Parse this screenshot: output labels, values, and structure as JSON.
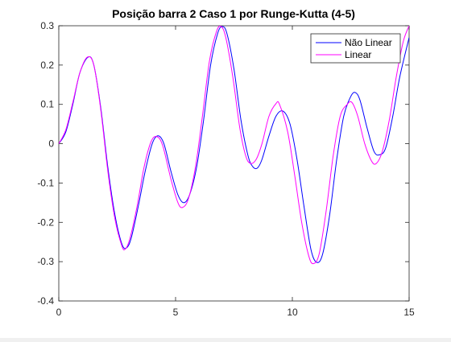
{
  "chart_data": {
    "type": "line",
    "title": "Posição barra 2 Caso 1 por Runge-Kutta (4-5)",
    "xlabel": "",
    "ylabel": "",
    "xlim": [
      0,
      15
    ],
    "ylim": [
      -0.4,
      0.3
    ],
    "xticks": [
      0,
      5,
      10,
      15
    ],
    "xtick_labels": [
      "0",
      "5",
      "10",
      "15"
    ],
    "yticks": [
      -0.4,
      -0.3,
      -0.2,
      -0.1,
      0,
      0.1,
      0.2,
      0.3
    ],
    "ytick_labels": [
      "-0.4",
      "-0.3",
      "-0.2",
      "-0.1",
      "0",
      "0.1",
      "0.2",
      "0.3"
    ],
    "grid": false,
    "legend_position": "top-right",
    "series": [
      {
        "name": "Não Linear",
        "color": "#0000ff",
        "points": [
          [
            0,
            0
          ],
          [
            0.3,
            0.03
          ],
          [
            0.6,
            0.1
          ],
          [
            0.9,
            0.18
          ],
          [
            1.25,
            0.22
          ],
          [
            1.5,
            0.2
          ],
          [
            1.8,
            0.09
          ],
          [
            2.1,
            -0.06
          ],
          [
            2.4,
            -0.18
          ],
          [
            2.7,
            -0.255
          ],
          [
            2.9,
            -0.265
          ],
          [
            3.1,
            -0.24
          ],
          [
            3.4,
            -0.16
          ],
          [
            3.7,
            -0.07
          ],
          [
            4.0,
            0.0
          ],
          [
            4.25,
            0.02
          ],
          [
            4.5,
            0.0
          ],
          [
            4.8,
            -0.07
          ],
          [
            5.1,
            -0.13
          ],
          [
            5.35,
            -0.15
          ],
          [
            5.6,
            -0.13
          ],
          [
            5.9,
            -0.06
          ],
          [
            6.2,
            0.06
          ],
          [
            6.5,
            0.2
          ],
          [
            6.8,
            0.28
          ],
          [
            7.0,
            0.298
          ],
          [
            7.2,
            0.28
          ],
          [
            7.5,
            0.19
          ],
          [
            7.8,
            0.06
          ],
          [
            8.1,
            -0.03
          ],
          [
            8.3,
            -0.058
          ],
          [
            8.5,
            -0.062
          ],
          [
            8.7,
            -0.04
          ],
          [
            9.0,
            0.02
          ],
          [
            9.3,
            0.07
          ],
          [
            9.6,
            0.083
          ],
          [
            9.9,
            0.05
          ],
          [
            10.2,
            -0.04
          ],
          [
            10.5,
            -0.16
          ],
          [
            10.8,
            -0.27
          ],
          [
            11.05,
            -0.302
          ],
          [
            11.3,
            -0.28
          ],
          [
            11.6,
            -0.18
          ],
          [
            11.9,
            -0.04
          ],
          [
            12.2,
            0.07
          ],
          [
            12.5,
            0.12
          ],
          [
            12.7,
            0.13
          ],
          [
            12.9,
            0.11
          ],
          [
            13.2,
            0.04
          ],
          [
            13.5,
            -0.02
          ],
          [
            13.75,
            -0.028
          ],
          [
            14.0,
            -0.01
          ],
          [
            14.3,
            0.07
          ],
          [
            14.6,
            0.17
          ],
          [
            15.0,
            0.27
          ]
        ]
      },
      {
        "name": "Linear",
        "color": "#ff00ff",
        "points": [
          [
            0,
            0
          ],
          [
            0.3,
            0.035
          ],
          [
            0.6,
            0.105
          ],
          [
            0.9,
            0.18
          ],
          [
            1.22,
            0.22
          ],
          [
            1.5,
            0.2
          ],
          [
            1.8,
            0.085
          ],
          [
            2.1,
            -0.07
          ],
          [
            2.4,
            -0.19
          ],
          [
            2.7,
            -0.26
          ],
          [
            2.85,
            -0.268
          ],
          [
            3.05,
            -0.24
          ],
          [
            3.35,
            -0.16
          ],
          [
            3.65,
            -0.06
          ],
          [
            3.95,
            0.005
          ],
          [
            4.2,
            0.018
          ],
          [
            4.45,
            -0.005
          ],
          [
            4.8,
            -0.09
          ],
          [
            5.1,
            -0.15
          ],
          [
            5.3,
            -0.162
          ],
          [
            5.55,
            -0.14
          ],
          [
            5.85,
            -0.06
          ],
          [
            6.15,
            0.07
          ],
          [
            6.45,
            0.21
          ],
          [
            6.75,
            0.285
          ],
          [
            6.95,
            0.298
          ],
          [
            7.15,
            0.27
          ],
          [
            7.45,
            0.17
          ],
          [
            7.75,
            0.04
          ],
          [
            8.0,
            -0.03
          ],
          [
            8.2,
            -0.05
          ],
          [
            8.45,
            -0.04
          ],
          [
            8.7,
            0.0
          ],
          [
            9.0,
            0.07
          ],
          [
            9.3,
            0.102
          ],
          [
            9.45,
            0.1
          ],
          [
            9.8,
            0.03
          ],
          [
            10.1,
            -0.08
          ],
          [
            10.4,
            -0.2
          ],
          [
            10.7,
            -0.285
          ],
          [
            10.9,
            -0.305
          ],
          [
            11.15,
            -0.28
          ],
          [
            11.45,
            -0.17
          ],
          [
            11.75,
            -0.03
          ],
          [
            12.05,
            0.07
          ],
          [
            12.35,
            0.1
          ],
          [
            12.55,
            0.105
          ],
          [
            12.8,
            0.07
          ],
          [
            13.1,
            0.0
          ],
          [
            13.4,
            -0.045
          ],
          [
            13.6,
            -0.05
          ],
          [
            13.85,
            -0.02
          ],
          [
            14.15,
            0.06
          ],
          [
            14.45,
            0.17
          ],
          [
            14.75,
            0.26
          ],
          [
            15.0,
            0.3
          ]
        ]
      }
    ]
  }
}
